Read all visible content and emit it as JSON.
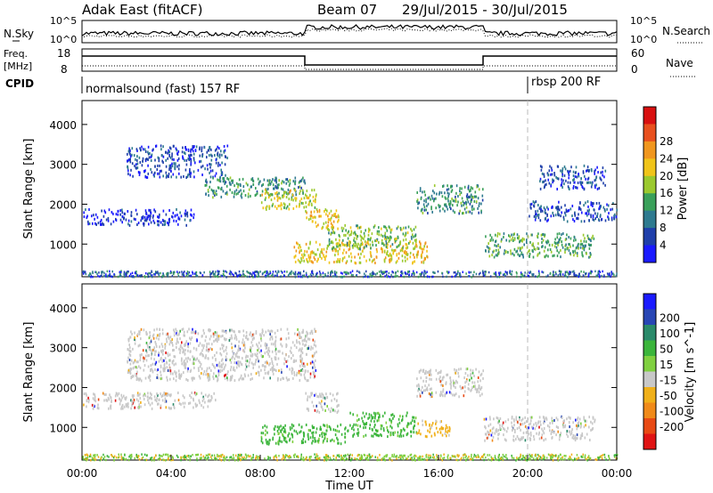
{
  "header": {
    "title": "Adak East (fitACF)",
    "beam": "Beam 07",
    "dates": "29/Jul/2015 - 30/Jul/2015"
  },
  "nsky_panel": {
    "label": "N.Sky",
    "right_label": "N.Search",
    "ticks": [
      "10^5",
      "10^0"
    ]
  },
  "freq_panel": {
    "label_line1": "Freq.",
    "label_line2": "[MHz]",
    "left_ticks": [
      "18",
      "8"
    ],
    "right_ticks": [
      "60",
      "0"
    ],
    "right_label": "Nave"
  },
  "cpid_panel": {
    "label": "CPID",
    "programs": [
      {
        "name": "normalsound (fast) 157 RF",
        "start_hour": 0
      },
      {
        "name": "rbsp 200 RF",
        "start_hour": 20
      }
    ]
  },
  "axes": {
    "ylabel": "Slant Range [km]",
    "xlabel": "Time UT",
    "x_ticks": [
      "00:00",
      "04:00",
      "08:00",
      "12:00",
      "16:00",
      "20:00",
      "00:00"
    ],
    "y_ticks": [
      "1000",
      "2000",
      "3000",
      "4000"
    ]
  },
  "chart_data": [
    {
      "type": "heatmap",
      "title": "Power",
      "xlabel": "Time UT",
      "ylabel": "Slant Range [km]",
      "xlim_hours": [
        0,
        24
      ],
      "ylim_km": [
        180,
        4600
      ],
      "colorbar": {
        "label": "Power [dB]",
        "ticks": [
          "4",
          "8",
          "12",
          "16",
          "20",
          "24",
          "28"
        ],
        "colors": [
          "#1a1aff",
          "#1f3faa",
          "#2e7a8f",
          "#3aa05a",
          "#9bc92e",
          "#f0c419",
          "#f0961e",
          "#e8501e",
          "#d81010"
        ]
      },
      "echo_regions": [
        {
          "t0": 2.0,
          "t1": 6.5,
          "r0": 2700,
          "r1": 3500,
          "power": 8
        },
        {
          "t0": 5.5,
          "t1": 10.0,
          "r0": 2200,
          "r1": 2700,
          "power": 14
        },
        {
          "t0": 8.0,
          "t1": 10.5,
          "r0": 1900,
          "r1": 2400,
          "power": 22
        },
        {
          "t0": 10.0,
          "t1": 11.5,
          "r0": 1400,
          "r1": 1900,
          "power": 24
        },
        {
          "t0": 9.5,
          "t1": 15.5,
          "r0": 550,
          "r1": 1100,
          "power": 24
        },
        {
          "t0": 11.0,
          "t1": 15.0,
          "r0": 900,
          "r1": 1500,
          "power": 18
        },
        {
          "t0": 0.0,
          "t1": 5.0,
          "r0": 1500,
          "r1": 1900,
          "power": 6
        },
        {
          "t0": 15.0,
          "t1": 18.0,
          "r0": 1800,
          "r1": 2500,
          "power": 14
        },
        {
          "t0": 18.0,
          "t1": 23.0,
          "r0": 700,
          "r1": 1300,
          "power": 16
        },
        {
          "t0": 20.0,
          "t1": 24.0,
          "r0": 1600,
          "r1": 2100,
          "power": 8
        },
        {
          "t0": 20.5,
          "t1": 23.5,
          "r0": 2400,
          "r1": 3000,
          "power": 8
        }
      ]
    },
    {
      "type": "heatmap",
      "title": "Velocity",
      "xlabel": "Time UT",
      "ylabel": "Slant Range [km]",
      "xlim_hours": [
        0,
        24
      ],
      "ylim_km": [
        180,
        4600
      ],
      "colorbar": {
        "label": "Velocity [m s^-1]",
        "ticks": [
          "200",
          "100",
          "50",
          "15",
          "-15",
          "-50",
          "-100",
          "-200"
        ],
        "colors": [
          "#1a1aff",
          "#2846b4",
          "#2a8a6a",
          "#3bb53b",
          "#80d040",
          "#c8c8c8",
          "#f0b019",
          "#f08a19",
          "#e84a14",
          "#e01414"
        ]
      },
      "echo_regions": [
        {
          "t0": 2.0,
          "t1": 10.5,
          "r0": 2200,
          "r1": 3500,
          "velocity": 0
        },
        {
          "t0": 10.0,
          "t1": 11.5,
          "r0": 1400,
          "r1": 1900,
          "velocity": 0
        },
        {
          "t0": 8.0,
          "t1": 12.0,
          "r0": 600,
          "r1": 1100,
          "velocity": 30
        },
        {
          "t0": 12.0,
          "t1": 15.0,
          "r0": 800,
          "r1": 1400,
          "velocity": 30
        },
        {
          "t0": 15.0,
          "t1": 16.5,
          "r0": 800,
          "r1": 1200,
          "velocity": -40
        },
        {
          "t0": 18.0,
          "t1": 23.0,
          "r0": 700,
          "r1": 1300,
          "velocity": 0
        },
        {
          "t0": 15.0,
          "t1": 18.0,
          "r0": 1800,
          "r1": 2500,
          "velocity": 0
        },
        {
          "t0": 0.0,
          "t1": 6.0,
          "r0": 1500,
          "r1": 1900,
          "velocity": 0
        }
      ]
    }
  ]
}
